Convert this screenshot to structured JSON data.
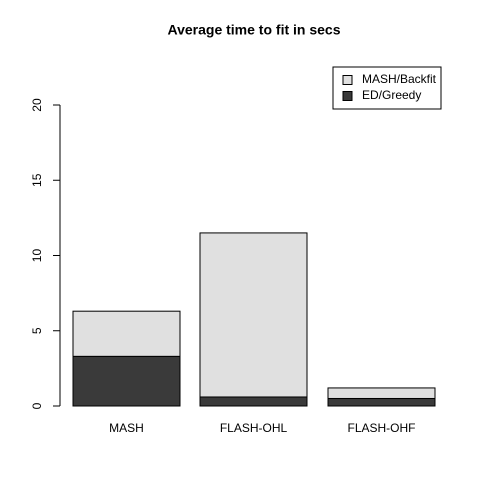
{
  "chart_data": {
    "type": "stacked_bar",
    "title": "Average time to fit in secs",
    "categories": [
      "MASH",
      "FLASH-OHL",
      "FLASH-OHF"
    ],
    "series": [
      {
        "name": "ED/Greedy",
        "color": "#3a3a3a",
        "values": [
          3.3,
          0.6,
          0.5
        ]
      },
      {
        "name": "MASH/Backfit",
        "color": "#e0e0e0",
        "values": [
          3.0,
          10.9,
          0.7
        ]
      }
    ],
    "ylim": [
      0,
      20
    ],
    "yticks": [
      0,
      5,
      10,
      15,
      20
    ],
    "grid": false,
    "legend": "top-right"
  }
}
